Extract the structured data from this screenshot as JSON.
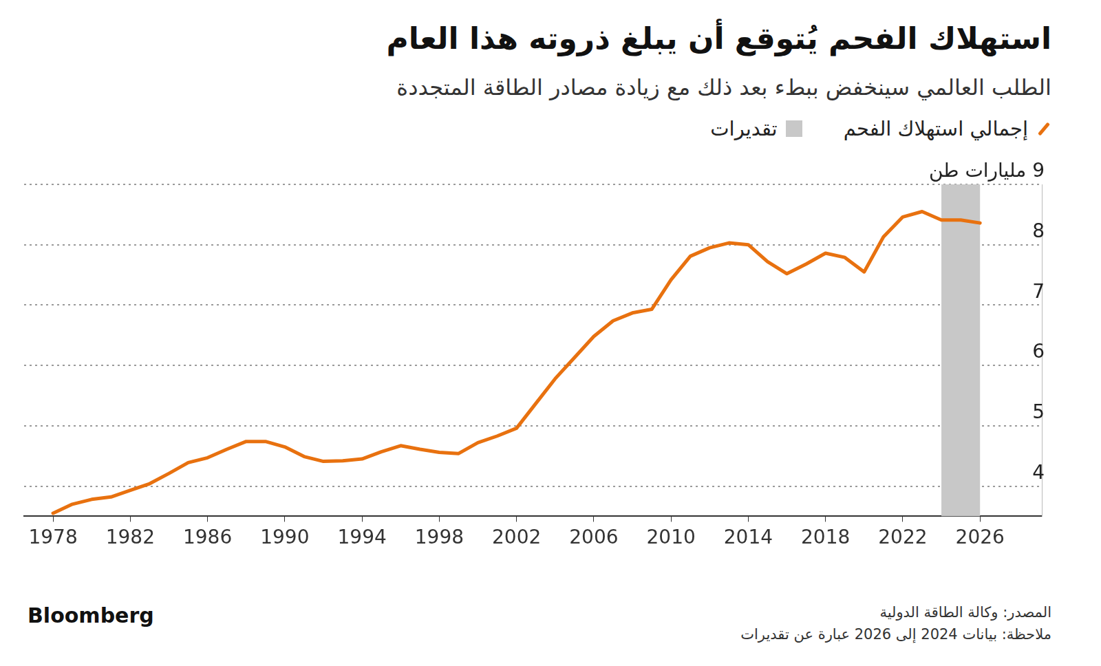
{
  "chart_data": {
    "type": "line",
    "title": "استهلاك الفحم يُتوقع أن يبلغ ذروته هذا العام",
    "subtitle": "الطلب العالمي سينخفض ببطء بعد ذلك مع زيادة مصادر الطاقة المتجددة",
    "x": [
      1978,
      1979,
      1980,
      1981,
      1982,
      1983,
      1984,
      1985,
      1986,
      1987,
      1988,
      1989,
      1990,
      1991,
      1992,
      1993,
      1994,
      1995,
      1996,
      1997,
      1998,
      1999,
      2000,
      2001,
      2002,
      2003,
      2004,
      2005,
      2006,
      2007,
      2008,
      2009,
      2010,
      2011,
      2012,
      2013,
      2014,
      2015,
      2016,
      2017,
      2018,
      2019,
      2020,
      2021,
      2022,
      2023,
      2024,
      2025,
      2026
    ],
    "series": [
      {
        "name": "إجمالي استهلاك الفحم",
        "color": "#e8710f",
        "values": [
          3.55,
          3.7,
          3.78,
          3.82,
          3.93,
          4.04,
          4.21,
          4.39,
          4.47,
          4.61,
          4.74,
          4.74,
          4.65,
          4.49,
          4.41,
          4.42,
          4.45,
          4.57,
          4.67,
          4.61,
          4.56,
          4.54,
          4.72,
          4.83,
          4.96,
          5.37,
          5.78,
          6.13,
          6.48,
          6.74,
          6.87,
          6.93,
          7.42,
          7.81,
          7.95,
          8.03,
          8.0,
          7.72,
          7.52,
          7.68,
          7.86,
          7.79,
          7.55,
          8.13,
          8.46,
          8.55,
          8.41,
          8.41,
          8.36
        ]
      }
    ],
    "shaded": {
      "name": "تقديرات",
      "color": "#c8c8c8",
      "x": [
        2024,
        2026
      ]
    },
    "xlim": [
      1976.5,
      2029.2
    ],
    "xticks": [
      1978,
      1982,
      1986,
      1990,
      1994,
      1998,
      2002,
      2006,
      2010,
      2014,
      2018,
      2022,
      2026
    ],
    "ylim": [
      3.5,
      9
    ],
    "yticks": [
      4,
      5,
      6,
      7,
      8,
      {
        "value": 9,
        "label": "9 مليارات طن"
      }
    ],
    "grid": true,
    "source": "المصدر: وكالة الطاقة الدولية",
    "note": "ملاحظة: بيانات 2024 إلى 2026 عبارة عن تقديرات",
    "brand": "Bloomberg"
  }
}
